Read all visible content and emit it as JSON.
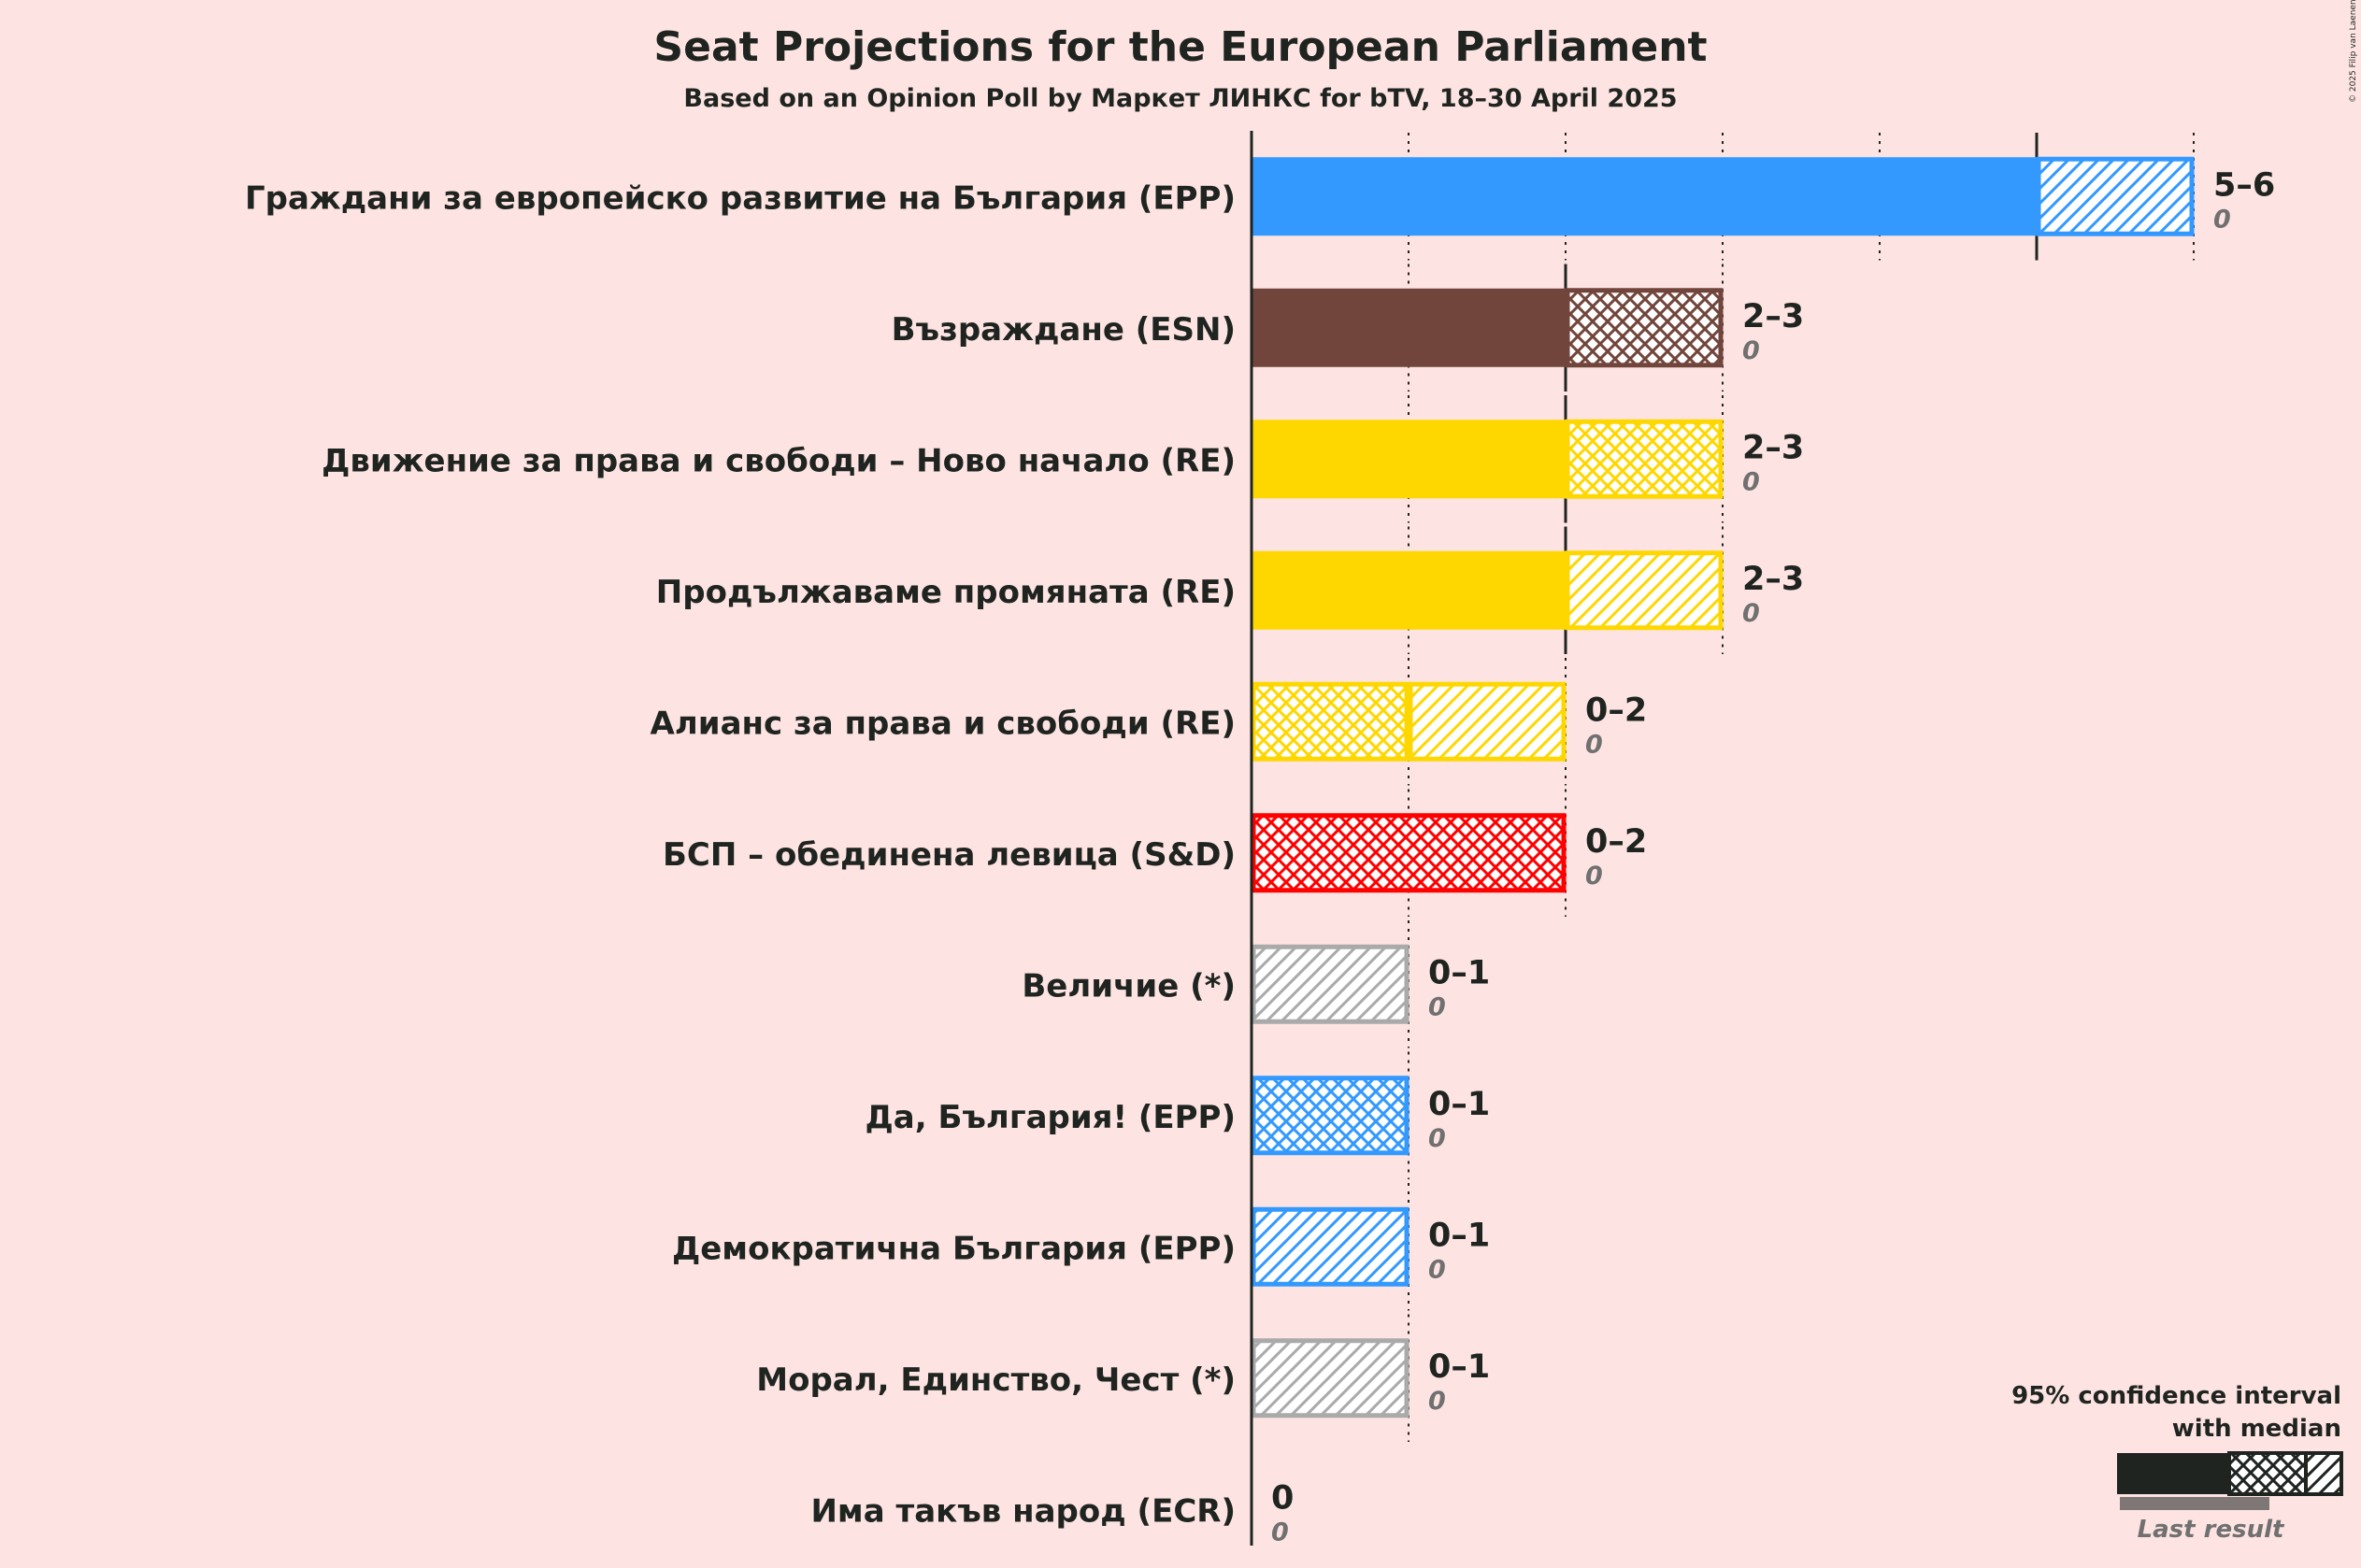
{
  "chart_data": {
    "type": "bar",
    "orientation": "horizontal",
    "title": "Seat Projections for the European Parliament",
    "subtitle": "Based on an Opinion Poll by Маркет ЛИНКС for bTV, 18–30 April 2025",
    "copyright": "© 2025 Filip van Laenen",
    "xlim": [
      0,
      6
    ],
    "parties": [
      {
        "name": "Граждани за европейско развитие на България (EPP)",
        "color": "#3399ff",
        "solid": 5,
        "median": 5,
        "high": 6,
        "median_pattern": "hatch",
        "range_label": "5–6",
        "last_result": "0"
      },
      {
        "name": "Възраждане (ESN)",
        "color": "#71453b",
        "solid": 2,
        "median": 3,
        "high": 3,
        "median_pattern": "cross",
        "range_label": "2–3",
        "last_result": "0"
      },
      {
        "name": "Движение за права и свободи – Ново начало (RE)",
        "color": "#ffd700",
        "solid": 2,
        "median": 3,
        "high": 3,
        "median_pattern": "cross",
        "range_label": "2–3",
        "last_result": "0"
      },
      {
        "name": "Продължаваме промяната (RE)",
        "color": "#ffd700",
        "solid": 2,
        "median": 2,
        "high": 3,
        "median_pattern": "hatch",
        "range_label": "2–3",
        "last_result": "0"
      },
      {
        "name": "Алианс за права и свободи (RE)",
        "color": "#ffd700",
        "solid": 0,
        "median": 1,
        "high": 2,
        "median_pattern": "cross",
        "range_label": "0–2",
        "last_result": "0"
      },
      {
        "name": "БСП – обединена левица (S&D)",
        "color": "#ff0000",
        "solid": 0,
        "median": 2,
        "high": 2,
        "median_pattern": "cross",
        "range_label": "0–2",
        "last_result": "0"
      },
      {
        "name": "Величие (*)",
        "color": "#aaaaaa",
        "solid": 0,
        "median": 0,
        "high": 1,
        "median_pattern": "hatch",
        "range_label": "0–1",
        "last_result": "0"
      },
      {
        "name": "Да, България! (EPP)",
        "color": "#3399ff",
        "solid": 0,
        "median": 1,
        "high": 1,
        "median_pattern": "cross",
        "range_label": "0–1",
        "last_result": "0"
      },
      {
        "name": "Демократична България (EPP)",
        "color": "#3399ff",
        "solid": 0,
        "median": 0,
        "high": 1,
        "median_pattern": "hatch",
        "range_label": "0–1",
        "last_result": "0"
      },
      {
        "name": "Морал, Единство, Чест (*)",
        "color": "#aaaaaa",
        "solid": 0,
        "median": 0,
        "high": 1,
        "median_pattern": "hatch",
        "range_label": "0–1",
        "last_result": "0"
      },
      {
        "name": "Има такъв народ (ECR)",
        "color": "#555555",
        "solid": 0,
        "median": 0,
        "high": 0,
        "median_pattern": "none",
        "range_label": "0",
        "last_result": "0"
      }
    ],
    "legend": {
      "title_line1": "95% confidence interval",
      "title_line2": "with median",
      "last_result_label": "Last result",
      "position": "bottom-right"
    }
  }
}
